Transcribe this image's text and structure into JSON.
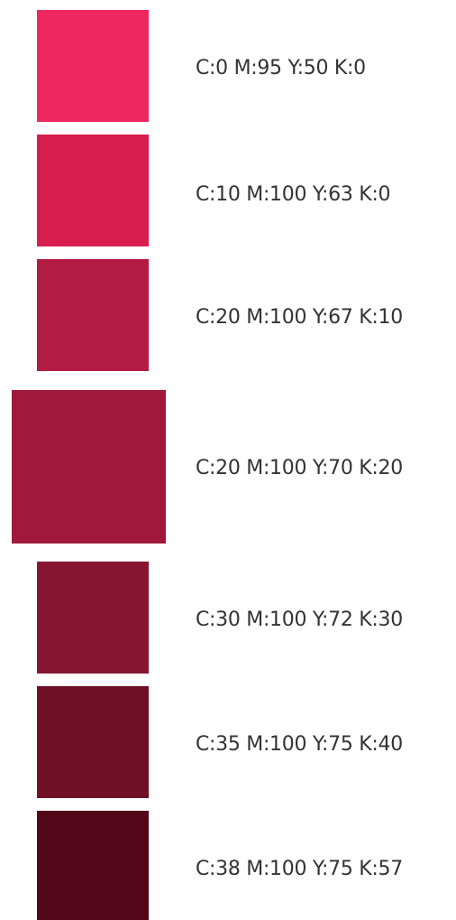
{
  "swatches": [
    {
      "label": "C:0 M:95 Y:50 K:0",
      "color": "#ED2861"
    },
    {
      "label": "C:10 M:100 Y:63 K:0",
      "color": "#D81E4E"
    },
    {
      "label": "C:20 M:100 Y:67 K:10",
      "color": "#B21C42"
    },
    {
      "label": "C:20 M:100 Y:70 K:20",
      "color": "#A0183A"
    },
    {
      "label": "C:30 M:100 Y:72 K:30",
      "color": "#871532"
    },
    {
      "label": "C:35 M:100 Y:75 K:40",
      "color": "#6E1127"
    },
    {
      "label": "C:38 M:100 Y:75 K:57",
      "color": "#530819"
    }
  ]
}
